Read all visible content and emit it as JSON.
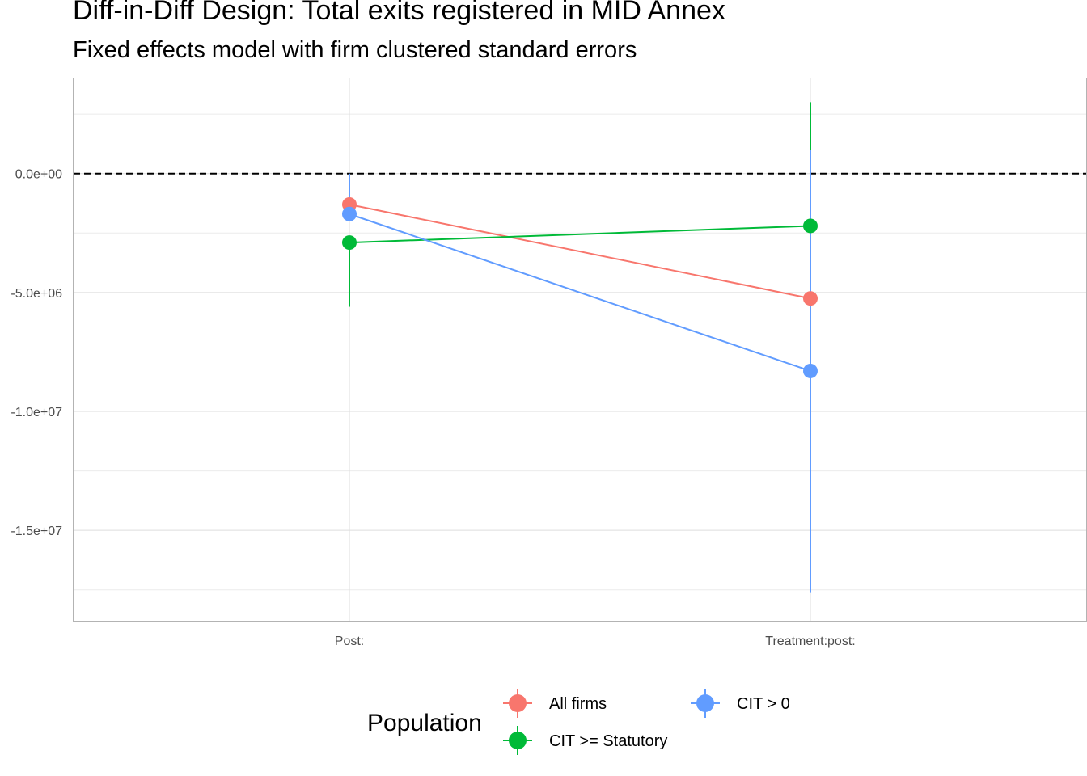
{
  "chart_data": {
    "type": "scatter",
    "title": "Diff-in-Diff Design: Total exits registered in MID Annex",
    "subtitle": "Fixed effects model with firm clustered standard errors",
    "xlabel": "",
    "ylabel": "",
    "categories": [
      "Post:",
      "Treatment:post:"
    ],
    "ylim": [
      -18800000,
      4000000
    ],
    "y_ticks": [
      0,
      -5000000,
      -10000000,
      -15000000
    ],
    "y_tick_labels": [
      "0.0e+00",
      "-5.0e+06",
      "-1.0e+07",
      "-1.5e+07"
    ],
    "reference_line": 0,
    "grid": true,
    "legend": {
      "title": "Population",
      "position": "bottom"
    },
    "series": [
      {
        "name": "All firms",
        "color": "#F8766D",
        "values": [
          -1300000,
          -5250000
        ],
        "ci_low": [
          null,
          null
        ],
        "ci_high": [
          null,
          null
        ]
      },
      {
        "name": "CIT >= Statutory",
        "color": "#00BA38",
        "values": [
          -2900000,
          -2200000
        ],
        "ci_low": [
          -5600000,
          null
        ],
        "ci_high": [
          null,
          3000000
        ]
      },
      {
        "name": "CIT > 0",
        "color": "#619CFF",
        "values": [
          -1700000,
          -8300000
        ],
        "ci_low": [
          null,
          -17600000
        ],
        "ci_high": [
          0,
          1000000
        ]
      }
    ]
  }
}
